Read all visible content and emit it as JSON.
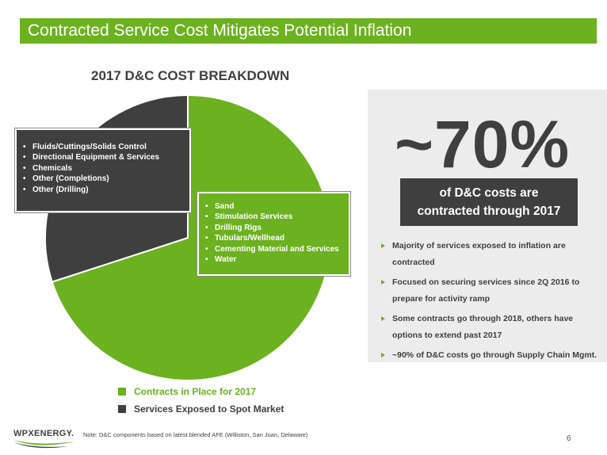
{
  "header": {
    "title": "Contracted Service Cost Mitigates Potential Inflation"
  },
  "colors": {
    "green": "#6cb120",
    "dark": "#3f3f3f",
    "panel": "#ececec"
  },
  "chart_data": {
    "type": "pie",
    "title": "2017 D&C COST BREAKDOWN",
    "slices": [
      {
        "name": "Contracts in Place for 2017",
        "value": 70,
        "color": "#6cb120"
      },
      {
        "name": "Services Exposed to Spot Market",
        "value": 30,
        "color": "#3f3f3f"
      }
    ]
  },
  "spot_box": {
    "items": [
      "Fluids/Cuttings/Solids Control",
      "Directional Equipment & Services",
      "Chemicals",
      "Other (Completions)",
      "Other (Drilling)"
    ]
  },
  "contract_box": {
    "items": [
      "Sand",
      "Stimulation Services",
      "Drilling Rigs",
      "Tubulars/Wellhead",
      "Cementing Material and Services",
      "Water"
    ]
  },
  "highlight": {
    "percent": "~70%",
    "line1": "of D&C costs are",
    "line2": "contracted through 2017"
  },
  "bullets": [
    "Majority of services exposed to inflation are contracted",
    "Focused on securing services since 2Q 2016 to prepare for activity ramp",
    "Some contracts go through 2018, others have options to extend past 2017",
    "~90% of D&C costs go through Supply Chain Mgmt."
  ],
  "legend": [
    {
      "label": "Contracts in Place for 2017",
      "color": "#6cb120"
    },
    {
      "label": "Services Exposed to Spot Market",
      "color": "#3f3f3f"
    }
  ],
  "footer": {
    "logo": "WPXENERGY.",
    "note": "Note:  D&C components based on latest blended AFE (Williston, San Juan, Delaware)",
    "page": "6"
  }
}
